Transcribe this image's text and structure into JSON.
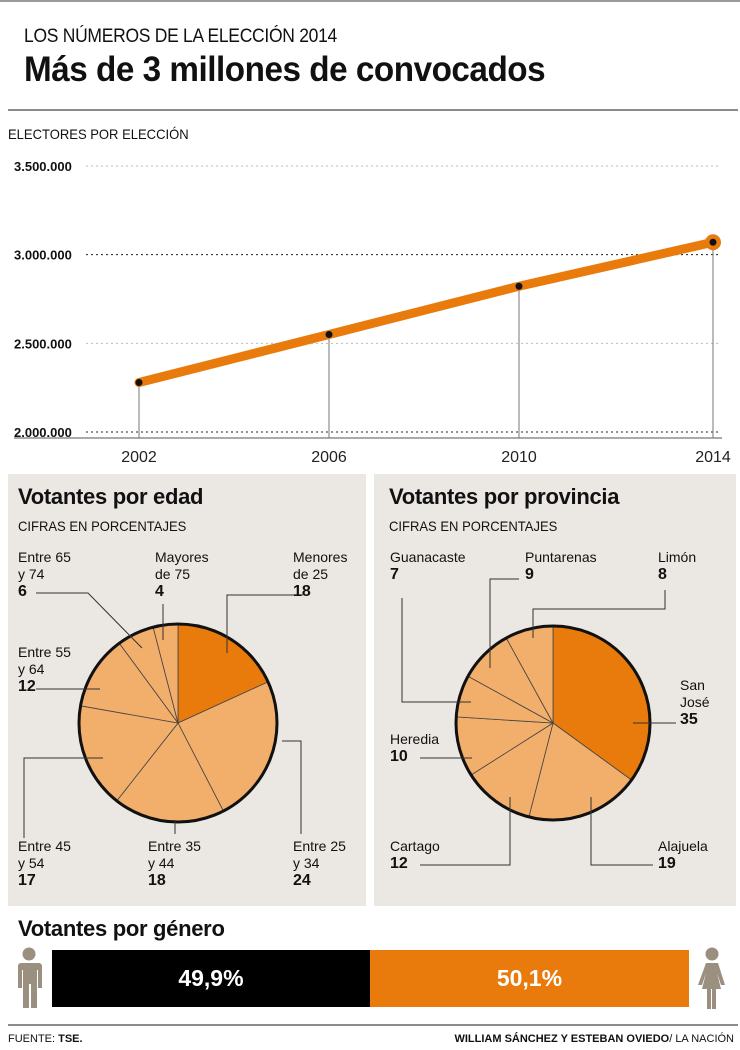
{
  "header": {
    "kicker": "LOS NÚMEROS DE LA ELECCIÓN 2014",
    "headline": "Más de 3 millones de convocados"
  },
  "colors": {
    "accent": "#e87b0c",
    "light_orange": "#f2ae6b",
    "panel_bg": "#ebe7e2",
    "icon_gray": "#9b9080",
    "bar_black": "#000000"
  },
  "chart_data": [
    {
      "type": "line",
      "title": "ELECTORES POR ELECCIÓN",
      "xlabel": "",
      "ylabel": "",
      "x": [
        "2002",
        "2006",
        "2010",
        "2014"
      ],
      "values": [
        2279000,
        2550000,
        2822000,
        3070000
      ],
      "ylim": [
        2000000,
        3500000
      ],
      "yticks": [
        {
          "value": 2000000,
          "label": "2.000.000"
        },
        {
          "value": 2500000,
          "label": "2.500.000"
        },
        {
          "value": 3000000,
          "label": "3.000.000"
        },
        {
          "value": 3500000,
          "label": "3.500.000"
        }
      ],
      "grid": true
    },
    {
      "type": "pie",
      "title": "Votantes por edad",
      "subtitle": "CIFRAS EN PORCENTAJES",
      "slices": [
        {
          "label_line1": "Menores",
          "label_line2": "de 25",
          "value": 18,
          "highlight": true
        },
        {
          "label_line1": "Entre 25",
          "label_line2": "y 34",
          "value": 24,
          "highlight": false
        },
        {
          "label_line1": "Entre 35",
          "label_line2": "y 44",
          "value": 18,
          "highlight": false
        },
        {
          "label_line1": "Entre 45",
          "label_line2": "y 54",
          "value": 17,
          "highlight": false
        },
        {
          "label_line1": "Entre 55",
          "label_line2": "y 64",
          "value": 12,
          "highlight": false
        },
        {
          "label_line1": "Entre 65",
          "label_line2": "y 74",
          "value": 6,
          "highlight": false
        },
        {
          "label_line1": "Mayores",
          "label_line2": "de 75",
          "value": 4,
          "highlight": false
        }
      ]
    },
    {
      "type": "pie",
      "title": "Votantes por provincia",
      "subtitle": "CIFRAS EN PORCENTAJES",
      "slices": [
        {
          "label_line1": "San",
          "label_line2": "José",
          "value": 35,
          "highlight": true
        },
        {
          "label_line1": "Alajuela",
          "label_line2": "",
          "value": 19,
          "highlight": false
        },
        {
          "label_line1": "Cartago",
          "label_line2": "",
          "value": 12,
          "highlight": false
        },
        {
          "label_line1": "Heredia",
          "label_line2": "",
          "value": 10,
          "highlight": false
        },
        {
          "label_line1": "Guanacaste",
          "label_line2": "",
          "value": 7,
          "highlight": false
        },
        {
          "label_line1": "Puntarenas",
          "label_line2": "",
          "value": 9,
          "highlight": false
        },
        {
          "label_line1": "Limón",
          "label_line2": "",
          "value": 8,
          "highlight": false
        }
      ]
    },
    {
      "type": "bar",
      "title": "Votantes por género",
      "categories": [
        "Hombres",
        "Mujeres"
      ],
      "values": [
        49.9,
        50.1
      ],
      "value_labels": [
        "49,9%",
        "50,1%"
      ]
    }
  ],
  "footer": {
    "source_prefix": "FUENTE: ",
    "source": "TSE.",
    "credit_authors": "WILLIAM SÁNCHEZ Y ESTEBAN OVIEDO",
    "credit_outlet": "/ LA NACIÓN"
  }
}
